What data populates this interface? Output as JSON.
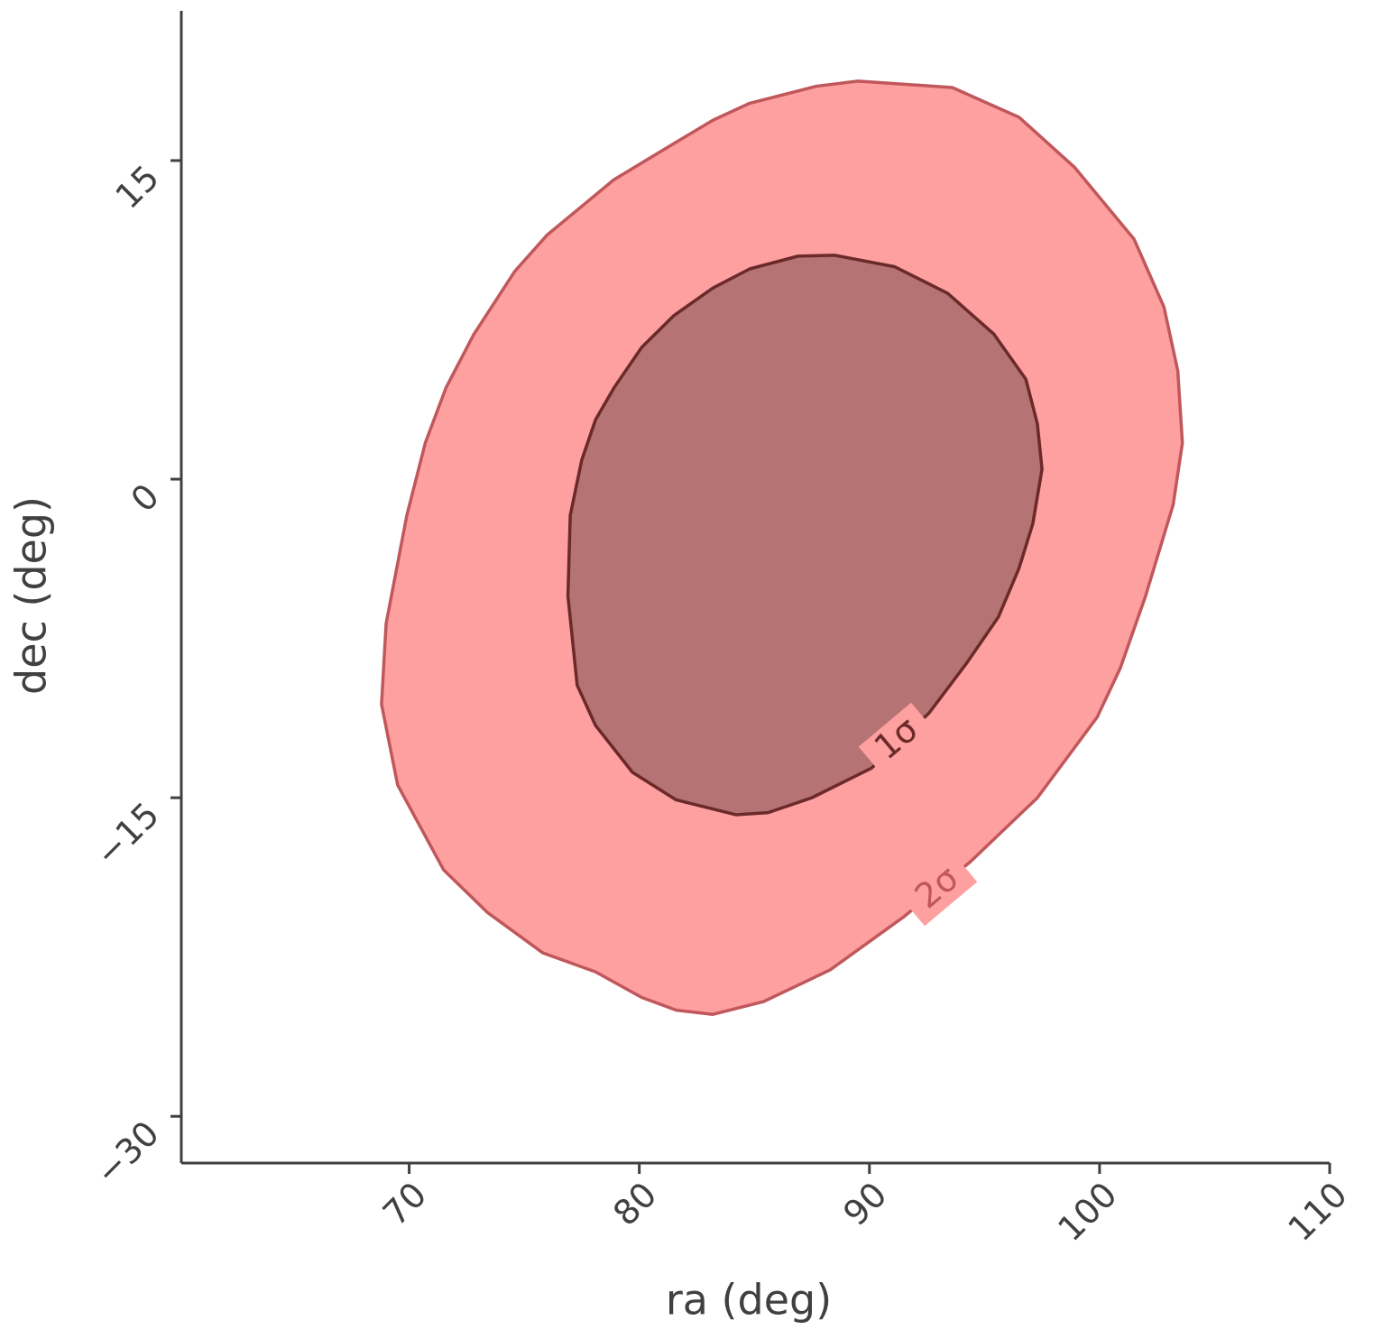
{
  "chart_data": {
    "type": "contour",
    "xlabel": "ra (deg)",
    "ylabel": "dec (deg)",
    "xlim": [
      60.1,
      110
    ],
    "ylim": [
      -32.2,
      22.05
    ],
    "xticks": [
      70,
      80,
      90,
      100,
      110
    ],
    "yticks": [
      {
        "value": -30,
        "label": "−30"
      },
      {
        "value": -15,
        "label": "−15"
      },
      0,
      15
    ],
    "series": [
      {
        "name": "2σ",
        "color": "#c0575b",
        "fill": "#ffa0a0",
        "x": [
          89.5,
          93.6,
          96.5,
          98.9,
          101.5,
          102.8,
          103.4,
          103.6,
          103.2,
          102.0,
          100.9,
          99.9,
          97.3,
          94.4,
          91.5,
          88.3,
          85.4,
          83.2,
          81.6,
          80.1,
          78.1,
          75.8,
          73.4,
          71.5,
          69.5,
          68.8,
          69.0,
          69.9,
          70.7,
          71.6,
          72.8,
          74.6,
          76.0,
          78.9,
          81.5,
          83.2,
          84.8,
          87.7
        ],
        "values": [
          18.74,
          18.44,
          17.04,
          14.7,
          11.3,
          8.1,
          5.1,
          1.7,
          -1.2,
          -5.5,
          -8.9,
          -11.2,
          -15.0,
          -18.0,
          -20.6,
          -23.1,
          -24.6,
          -25.2,
          -25.0,
          -24.4,
          -23.2,
          -22.3,
          -20.4,
          -18.4,
          -14.4,
          -10.6,
          -6.8,
          -1.7,
          1.7,
          4.3,
          6.8,
          9.8,
          11.5,
          14.1,
          15.8,
          16.9,
          17.7,
          18.5
        ]
      },
      {
        "name": "1σ",
        "color": "#6b2a2a",
        "fill": "#b57373",
        "x": [
          88.5,
          91.1,
          93.4,
          95.4,
          96.8,
          97.3,
          97.5,
          97.1,
          96.5,
          95.6,
          94.2,
          92.6,
          90.1,
          87.5,
          85.6,
          84.2,
          81.6,
          79.7,
          78.1,
          77.3,
          76.9,
          77.0,
          77.5,
          78.1,
          78.9,
          80.1,
          81.5,
          83.2,
          84.8,
          86.9
        ],
        "values": [
          10.54,
          10.0,
          8.75,
          6.84,
          4.7,
          2.6,
          0.47,
          -2.1,
          -4.2,
          -6.5,
          -8.7,
          -11.0,
          -13.6,
          -15.0,
          -15.7,
          -15.8,
          -15.1,
          -13.8,
          -11.6,
          -9.7,
          -5.5,
          -1.7,
          0.9,
          2.8,
          4.3,
          6.2,
          7.7,
          9.0,
          9.9,
          10.5
        ]
      }
    ]
  }
}
